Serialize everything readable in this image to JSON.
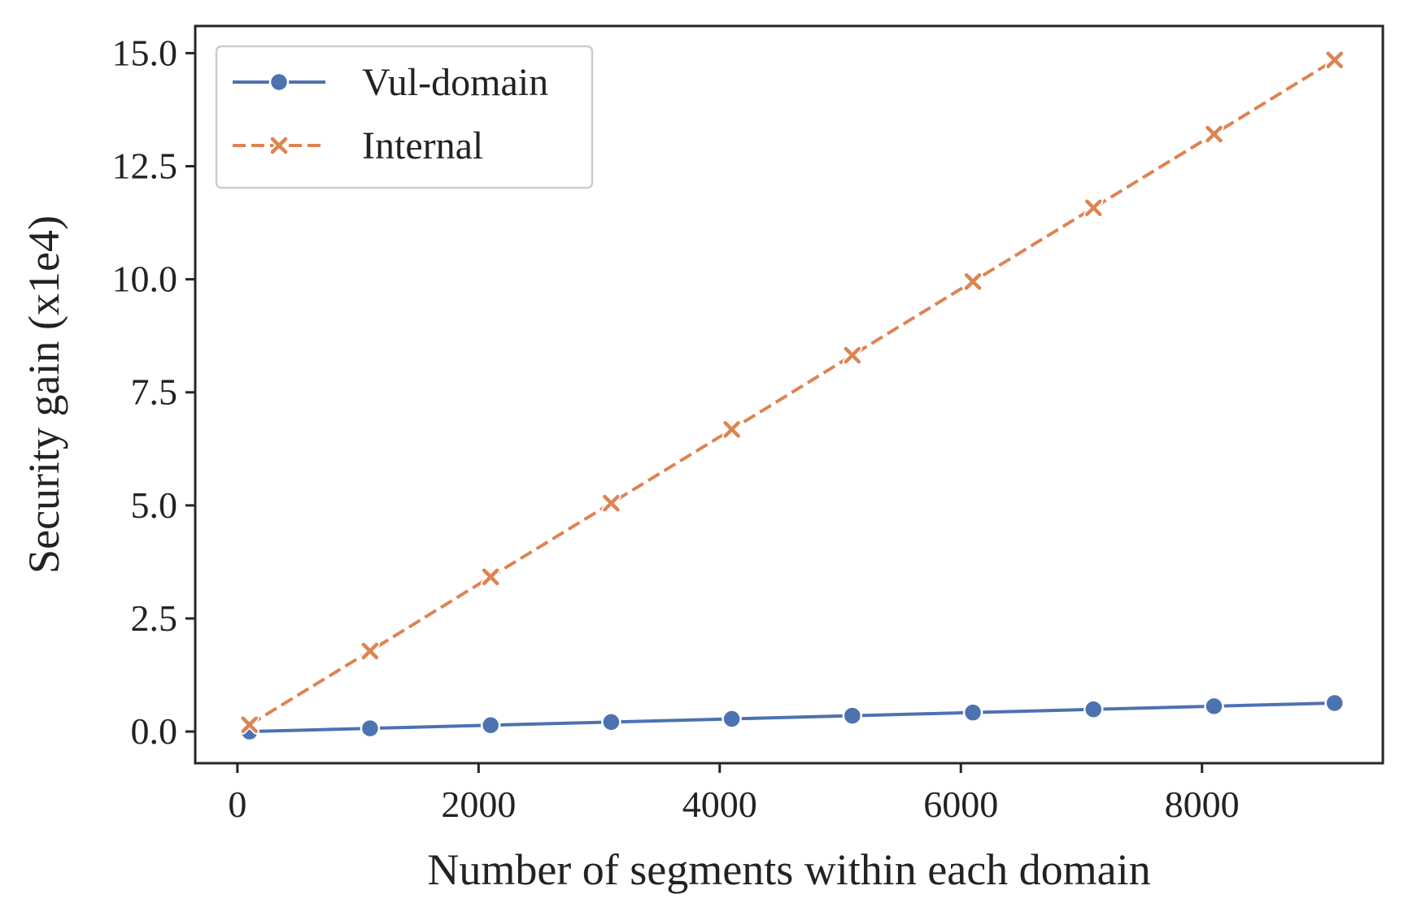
{
  "chart_data": {
    "type": "line",
    "xlabel": "Number of segments within each domain",
    "ylabel": "Security gain (x1e4)",
    "xlim": [
      -350,
      9500
    ],
    "ylim": [
      -0.7,
      15.6
    ],
    "x_ticks": [
      0,
      2000,
      4000,
      6000,
      8000
    ],
    "x_tick_labels": [
      "0",
      "2000",
      "4000",
      "6000",
      "8000"
    ],
    "y_ticks": [
      0.0,
      2.5,
      5.0,
      7.5,
      10.0,
      12.5,
      15.0
    ],
    "y_tick_labels": [
      "0.0",
      "2.5",
      "5.0",
      "7.5",
      "10.0",
      "12.5",
      "15.0"
    ],
    "grid": false,
    "legend_position": "top-left",
    "x": [
      100,
      1100,
      2100,
      3100,
      4100,
      5100,
      6100,
      7100,
      8100,
      9100
    ],
    "series": [
      {
        "name": "Vul-domain",
        "color": "#4c72b0",
        "marker": "circle",
        "line_style": "solid",
        "values": [
          0.0,
          0.07,
          0.14,
          0.21,
          0.28,
          0.35,
          0.42,
          0.49,
          0.56,
          0.63
        ]
      },
      {
        "name": "Internal",
        "color": "#dd8452",
        "marker": "x",
        "line_style": "dashed",
        "values": [
          0.15,
          1.78,
          3.42,
          5.05,
          6.68,
          8.32,
          9.95,
          11.58,
          13.21,
          14.85
        ]
      }
    ]
  }
}
